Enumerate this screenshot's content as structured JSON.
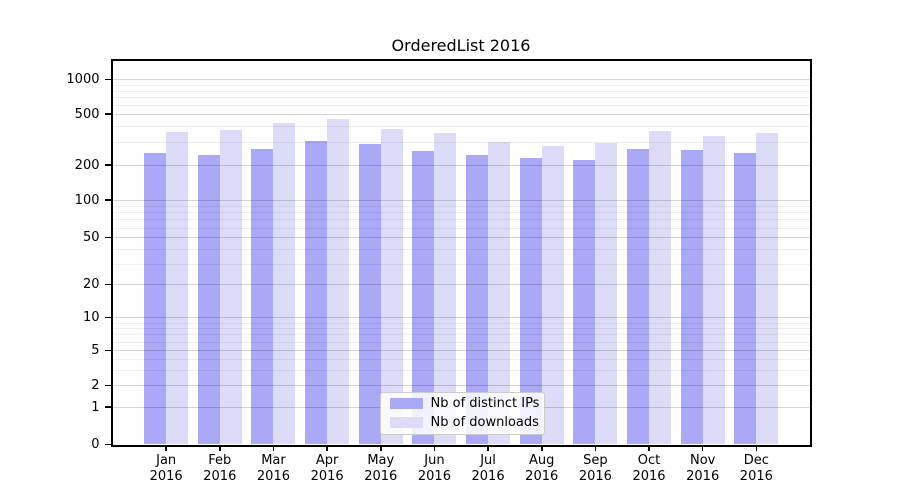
{
  "chart_data": {
    "type": "bar",
    "title": "OrderedList 2016",
    "categories": [
      "Jan",
      "Feb",
      "Mar",
      "Apr",
      "May",
      "Jun",
      "Jul",
      "Aug",
      "Sep",
      "Oct",
      "Nov",
      "Dec"
    ],
    "year_label": "2016",
    "series": [
      {
        "name": "Nb of distinct IPs",
        "color": "#a9a9f7",
        "values": [
          250,
          238,
          266,
          308,
          293,
          257,
          241,
          225,
          220,
          267,
          262,
          249
        ]
      },
      {
        "name": "Nb of downloads",
        "color": "#dcdcf9",
        "values": [
          365,
          374,
          428,
          458,
          381,
          356,
          301,
          281,
          297,
          371,
          336,
          356
        ]
      }
    ],
    "xlabel": "",
    "ylabel": "",
    "yscale": "symlog",
    "y_ticks": [
      0,
      1,
      2,
      5,
      10,
      20,
      50,
      100,
      200,
      500,
      1000
    ],
    "y_minor_ticks": [
      3,
      4,
      6,
      7,
      8,
      9,
      30,
      40,
      60,
      70,
      80,
      90,
      300,
      400,
      600,
      700,
      800,
      900
    ],
    "ylim": [
      0,
      1300
    ],
    "grid": "horizontal major+minor",
    "legend_position": "inside lower-center"
  },
  "legend": {
    "entries": [
      "Nb of distinct IPs",
      "Nb of downloads"
    ]
  },
  "colors": {
    "bar_ips": "#a9a9f7",
    "bar_downloads": "#dcdcf9",
    "grid_major": "#d9d9d9",
    "grid_minor": "#efefef",
    "axis": "#000000",
    "legend_border": "#cccccc"
  }
}
